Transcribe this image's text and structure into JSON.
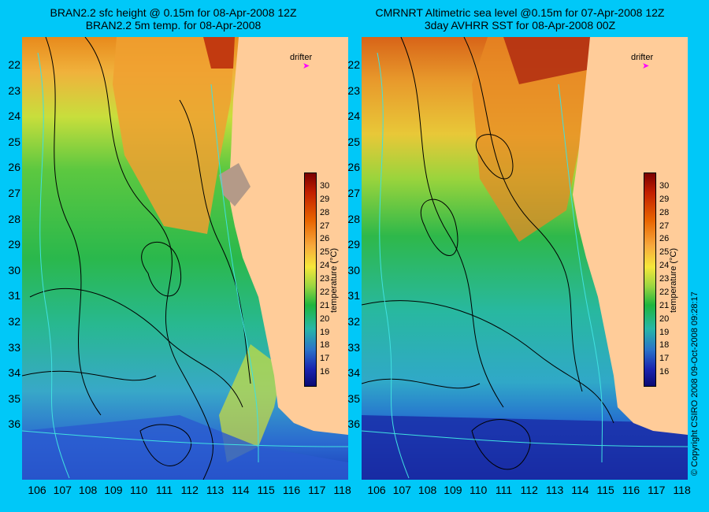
{
  "left_panel": {
    "title_line1": "BRAN2.2 sfc height @ 0.15m for 08-Apr-2008 12Z",
    "title_line2": "BRAN2.2 5m temp. for 08-Apr-2008"
  },
  "right_panel": {
    "title_line1": "CMRNRT Altimetric sea level  @0.15m  for 07-Apr-2008 12Z",
    "title_line2": "3day AVHRR SST for 08-Apr-2008 00Z"
  },
  "drifter_label": "drifter",
  "latitudes": [
    "22",
    "23",
    "24",
    "25",
    "26",
    "27",
    "28",
    "29",
    "30",
    "31",
    "32",
    "33",
    "34",
    "35",
    "36"
  ],
  "longitudes": [
    "106",
    "107",
    "108",
    "109",
    "110",
    "111",
    "112",
    "113",
    "114",
    "115",
    "116",
    "117",
    "118"
  ],
  "colorbar": {
    "ticks": [
      "30",
      "29",
      "28",
      "27",
      "26",
      "25",
      "24",
      "23",
      "22",
      "21",
      "20",
      "19",
      "18",
      "17",
      "16"
    ],
    "label": "temperature (°C)",
    "min": 15,
    "max": 31
  },
  "copyright": "© Copyright CSIRO 2008   09-Oct-2008 09:28:17",
  "colors": {
    "background": "#00c8f8",
    "land": "#ffcc99",
    "contour": "#000000",
    "bathymetry": "#40e0e0",
    "drifter_marker": "#ff00ff"
  }
}
